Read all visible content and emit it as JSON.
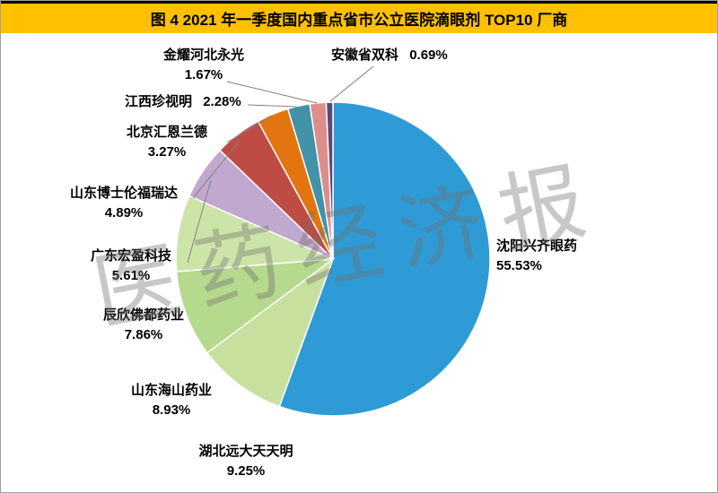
{
  "title": "图 4  2021 年一季度国内重点省市公立医院滴眼剂 TOP10 厂商",
  "watermark": "医药经济报",
  "colors": {
    "title_bg": "#FFC000",
    "title_text": "#000000",
    "leader_line": "#808080"
  },
  "chart_data": {
    "type": "pie",
    "title": "2021 年一季度国内重点省市公立医院滴眼剂 TOP10 厂商",
    "xlabel": "",
    "ylabel": "",
    "legend_position": "none",
    "start_angle": "top",
    "direction": "clockwise",
    "unit": "%",
    "slices": [
      {
        "name": "沈阳兴齐眼药",
        "value": 55.53,
        "pct": "55.53%",
        "color": "#2E9BD6"
      },
      {
        "name": "湖北远大天天明",
        "value": 9.25,
        "pct": "9.25%",
        "color": "#C7E09E"
      },
      {
        "name": "山东海山药业",
        "value": 8.93,
        "pct": "8.93%",
        "color": "#B5D98D"
      },
      {
        "name": "辰欣佛都药业",
        "value": 7.86,
        "pct": "7.86%",
        "color": "#Cde4A8"
      },
      {
        "name": "广东宏盈科技",
        "value": 5.61,
        "pct": "5.61%",
        "color": "#C0A8CF"
      },
      {
        "name": "山东博士伦福瑞达",
        "value": 4.89,
        "pct": "4.89%",
        "color": "#BE4C44"
      },
      {
        "name": "北京汇恩兰德",
        "value": 3.27,
        "pct": "3.27%",
        "color": "#E2750F"
      },
      {
        "name": "江西珍视明",
        "value": 2.28,
        "pct": "2.28%",
        "color": "#4293A8"
      },
      {
        "name": "金耀河北永光",
        "value": 1.67,
        "pct": "1.67%",
        "color": "#DD8D8C"
      },
      {
        "name": "安徽省双科",
        "value": 0.69,
        "pct": "0.69%",
        "color": "#5A4A78"
      }
    ]
  }
}
